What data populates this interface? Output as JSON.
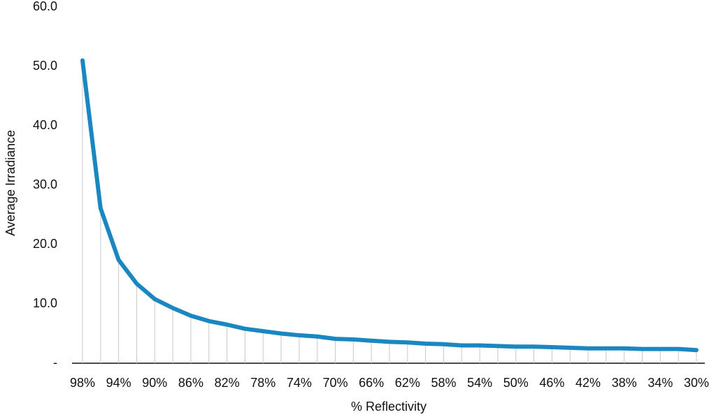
{
  "chart_data": {
    "type": "line",
    "x_label": "% Reflectivity",
    "y_label": "Average Irradiance",
    "categories": [
      "98%",
      null,
      "94%",
      null,
      "90%",
      null,
      "86%",
      null,
      "82%",
      null,
      "78%",
      null,
      "74%",
      null,
      "70%",
      null,
      "66%",
      null,
      "62%",
      null,
      "58%",
      null,
      "54%",
      null,
      "50%",
      null,
      "46%",
      null,
      "42%",
      null,
      "38%",
      null,
      "34%",
      null,
      "30%"
    ],
    "values": [
      51.0,
      26.1,
      17.4,
      13.4,
      10.8,
      9.3,
      8.0,
      7.1,
      6.5,
      5.8,
      5.4,
      5.0,
      4.7,
      4.5,
      4.1,
      4.0,
      3.8,
      3.6,
      3.5,
      3.3,
      3.2,
      3.0,
      3.0,
      2.9,
      2.8,
      2.8,
      2.7,
      2.6,
      2.5,
      2.5,
      2.5,
      2.4,
      2.4,
      2.4,
      2.2
    ],
    "color": "#1b87c1",
    "drop_lines": true,
    "ylim": [
      0,
      60
    ],
    "yticks": [
      {
        "value": 0,
        "label": "-"
      },
      {
        "value": 10,
        "label": "10.0"
      },
      {
        "value": 20,
        "label": "20.0"
      },
      {
        "value": 30,
        "label": "30.0"
      },
      {
        "value": 40,
        "label": "40.0"
      },
      {
        "value": 50,
        "label": "50.0"
      },
      {
        "value": 60,
        "label": "60.0"
      }
    ]
  }
}
